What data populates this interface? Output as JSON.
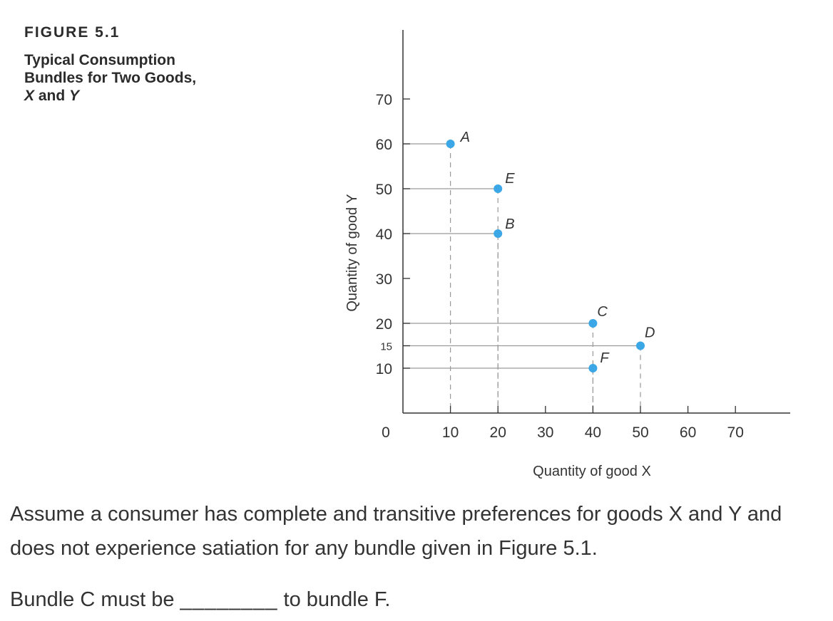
{
  "figure": {
    "label": "FIGURE 5.1",
    "title_line1": "Typical Consumption",
    "title_line2": "Bundles for Two Goods,",
    "title_x": "X",
    "title_and": "and",
    "title_y": "Y"
  },
  "chart_data": {
    "type": "scatter",
    "xlabel": "Quantity of good X",
    "ylabel": "Quantity of good Y",
    "xlim": [
      0,
      80
    ],
    "ylim": [
      0,
      70
    ],
    "x_ticks": [
      10,
      20,
      30,
      40,
      50,
      60,
      70
    ],
    "y_ticks": [
      10,
      15,
      20,
      30,
      40,
      50,
      60,
      70
    ],
    "origin_label": "0",
    "grid": false,
    "guide_lines": "dashed vertical and solid horizontal lines from each point to the axes",
    "point_color": "#3ba7e6",
    "points": [
      {
        "label": "A",
        "x": 10,
        "y": 60
      },
      {
        "label": "E",
        "x": 20,
        "y": 50
      },
      {
        "label": "B",
        "x": 20,
        "y": 40
      },
      {
        "label": "C",
        "x": 40,
        "y": 20
      },
      {
        "label": "D",
        "x": 50,
        "y": 15
      },
      {
        "label": "F",
        "x": 40,
        "y": 10
      }
    ]
  },
  "question": {
    "text": "Assume a consumer has complete and transitive preferences for goods X and Y and does not experience satiation for any bundle given in Figure 5.1.",
    "prompt_before": "Bundle C must be",
    "blank": "________",
    "prompt_after": "to bundle F."
  }
}
